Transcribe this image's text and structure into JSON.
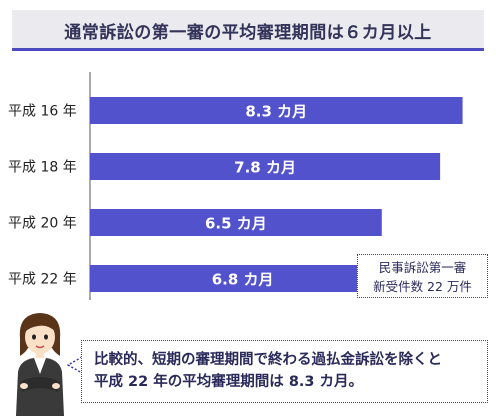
{
  "title": "通常訴訟の第一審の平均審理期間は６カ月以上",
  "chart_data": {
    "type": "bar",
    "orientation": "horizontal",
    "categories": [
      "平成 16 年",
      "平成 18 年",
      "平成 20 年",
      "平成 22 年"
    ],
    "values": [
      8.3,
      7.8,
      6.5,
      6.8
    ],
    "value_labels": [
      "8.3 カ月",
      "7.8 カ月",
      "6.5 カ月",
      "6.8 カ月"
    ],
    "unit": "カ月",
    "xlim": [
      0,
      9
    ],
    "bar_color": "#5252cc",
    "grid": false
  },
  "note": {
    "line1": "民事訴訟第一審",
    "line2": "新受件数 22 万件"
  },
  "comment": {
    "line1": "比較的、短期の審理期間で終わる過払金訴訟を除くと",
    "line2": "平成 22 年の平均審理期間は 8.3 カ月。"
  },
  "colors": {
    "accent": "#4b4bbf",
    "bar": "#5252cc",
    "title_bg": "#ebebef"
  },
  "icons": [
    "businesswoman-illustration"
  ]
}
